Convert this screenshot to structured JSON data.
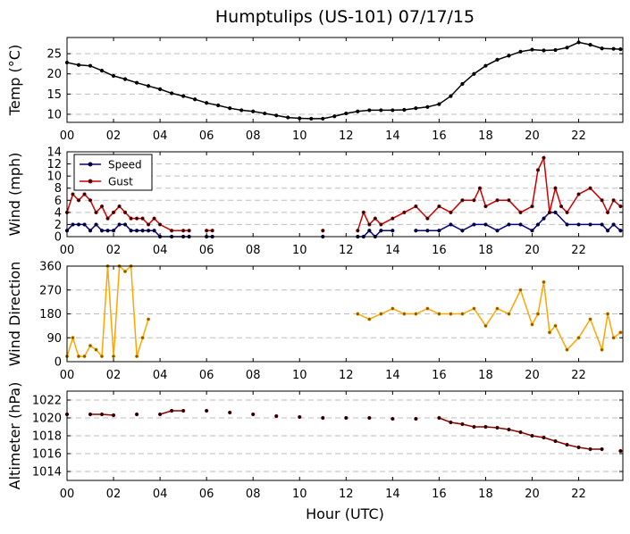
{
  "figure": {
    "title": "Humptulips (US-101) 07/17/15",
    "xlabel": "Hour (UTC)"
  },
  "chart_data": [
    {
      "type": "line",
      "ylabel": "Temp ($^\\circ$C)",
      "xlim": [
        0,
        23.9
      ],
      "ylim": [
        8,
        29
      ],
      "xticks": [
        0,
        2,
        4,
        6,
        8,
        10,
        12,
        14,
        16,
        18,
        20,
        22
      ],
      "xtick_labels": [
        "00",
        "02",
        "04",
        "06",
        "08",
        "10",
        "12",
        "14",
        "16",
        "18",
        "20",
        "22"
      ],
      "yticks": [
        10,
        15,
        20,
        25
      ],
      "ytick_labels": [
        "10",
        "15",
        "20",
        "25"
      ],
      "grid": "y",
      "series": [
        {
          "color": "#000000",
          "x": [
            0,
            0.5,
            1,
            1.5,
            2,
            2.5,
            3,
            3.5,
            4,
            4.5,
            5,
            5.5,
            6,
            6.5,
            7,
            7.5,
            8,
            8.5,
            9,
            9.5,
            10,
            10.5,
            11,
            11.5,
            12,
            12.5,
            13,
            13.5,
            14,
            14.5,
            15,
            15.5,
            16,
            16.5,
            17,
            17.5,
            18,
            18.5,
            19,
            19.5,
            20,
            20.5,
            21,
            21.5,
            22,
            22.5,
            23,
            23.5,
            23.8
          ],
          "y": [
            22.8,
            22.2,
            22.0,
            20.8,
            19.5,
            18.7,
            17.8,
            17.0,
            16.2,
            15.2,
            14.5,
            13.7,
            12.8,
            12.2,
            11.5,
            11.0,
            10.7,
            10.2,
            9.7,
            9.2,
            9.0,
            8.9,
            8.9,
            9.5,
            10.2,
            10.7,
            11.0,
            11.0,
            11.0,
            11.1,
            11.5,
            11.8,
            12.5,
            14.5,
            17.5,
            20.0,
            22.0,
            23.5,
            24.5,
            25.5,
            26.0,
            25.8,
            25.9,
            26.5,
            27.8,
            27.2,
            26.3,
            26.2,
            26.1
          ]
        }
      ]
    },
    {
      "type": "line",
      "ylabel": "Wind (mph)",
      "xlim": [
        0,
        23.9
      ],
      "ylim": [
        0,
        14
      ],
      "xticks": [
        0,
        2,
        4,
        6,
        8,
        10,
        12,
        14,
        16,
        18,
        20,
        22
      ],
      "xtick_labels": [
        "00",
        "02",
        "04",
        "06",
        "08",
        "10",
        "12",
        "14",
        "16",
        "18",
        "20",
        "22"
      ],
      "yticks": [
        0,
        2,
        4,
        6,
        8,
        10,
        12,
        14
      ],
      "ytick_labels": [
        "0",
        "2",
        "4",
        "6",
        "8",
        "10",
        "12",
        "14"
      ],
      "grid": "y",
      "legend": {
        "position": "top-left",
        "entries": [
          "Speed",
          "Gust"
        ]
      },
      "series": [
        {
          "name": "Speed",
          "color": "#00008b",
          "x": [
            0,
            0.25,
            0.5,
            0.75,
            1,
            1.25,
            1.5,
            1.75,
            2,
            2.25,
            2.5,
            2.75,
            3,
            3.25,
            3.5,
            3.75,
            4,
            4.5,
            5,
            5.25,
            6,
            6.25,
            11,
            12.5,
            12.75,
            13,
            13.25,
            13.5,
            14,
            15,
            15.5,
            16,
            16.5,
            17,
            17.5,
            18,
            18.5,
            19,
            19.5,
            20,
            20.25,
            20.5,
            20.75,
            21,
            21.5,
            22,
            22.5,
            23,
            23.25,
            23.5,
            23.8
          ],
          "y": [
            1,
            2,
            2,
            2,
            1,
            2,
            1,
            1,
            1,
            2,
            2,
            1,
            1,
            1,
            1,
            1,
            0,
            0,
            0,
            0,
            0,
            0,
            0,
            0,
            0,
            1,
            0,
            1,
            1,
            1,
            1,
            1,
            2,
            1,
            2,
            2,
            1,
            2,
            2,
            1,
            2,
            3,
            4,
            4,
            2,
            2,
            2,
            2,
            1,
            2,
            1
          ]
        },
        {
          "name": "Gust",
          "color": "#cc0000",
          "x": [
            0,
            0.25,
            0.5,
            0.75,
            1,
            1.25,
            1.5,
            1.75,
            2,
            2.25,
            2.5,
            2.75,
            3,
            3.25,
            3.5,
            3.75,
            4,
            4.5,
            5,
            5.25,
            6,
            6.25,
            11,
            12.5,
            12.75,
            13,
            13.25,
            13.5,
            14,
            14.5,
            15,
            15.5,
            16,
            16.5,
            17,
            17.5,
            17.75,
            18,
            18.5,
            19,
            19.5,
            20,
            20.25,
            20.5,
            20.75,
            21,
            21.25,
            21.5,
            22,
            22.5,
            23,
            23.25,
            23.5,
            23.8
          ],
          "y": [
            4,
            7,
            6,
            7,
            6,
            4,
            5,
            3,
            4,
            5,
            4,
            3,
            3,
            3,
            2,
            3,
            2,
            1,
            1,
            1,
            1,
            1,
            1,
            1,
            4,
            2,
            3,
            2,
            3,
            4,
            5,
            3,
            5,
            4,
            6,
            6,
            8,
            5,
            6,
            6,
            4,
            5,
            11,
            13,
            4,
            8,
            5,
            4,
            7,
            8,
            6,
            4,
            6,
            5
          ]
        }
      ]
    },
    {
      "type": "line",
      "ylabel": "Wind Direction",
      "xlim": [
        0,
        23.9
      ],
      "ylim": [
        0,
        360
      ],
      "xticks": [
        0,
        2,
        4,
        6,
        8,
        10,
        12,
        14,
        16,
        18,
        20,
        22
      ],
      "xtick_labels": [
        "00",
        "02",
        "04",
        "06",
        "08",
        "10",
        "12",
        "14",
        "16",
        "18",
        "20",
        "22"
      ],
      "yticks": [
        0,
        90,
        180,
        270,
        360
      ],
      "ytick_labels": [
        "0",
        "90",
        "180",
        "270",
        "360"
      ],
      "grid": "y",
      "series": [
        {
          "color": "#ffa500",
          "x": [
            0,
            0.25,
            0.5,
            0.75,
            1,
            1.25,
            1.5,
            1.75,
            2,
            2.25,
            2.5,
            2.75,
            3,
            3.25,
            3.5,
            12.5,
            13,
            13.5,
            14,
            14.5,
            15,
            15.5,
            16,
            16.5,
            17,
            17.5,
            18,
            18.5,
            19,
            19.5,
            20,
            20.25,
            20.5,
            20.75,
            21,
            21.5,
            22,
            22.5,
            23,
            23.25,
            23.5,
            23.8
          ],
          "y": [
            20,
            90,
            20,
            20,
            60,
            45,
            20,
            360,
            20,
            360,
            340,
            360,
            20,
            90,
            160,
            180,
            160,
            180,
            200,
            180,
            180,
            200,
            180,
            180,
            180,
            200,
            135,
            200,
            180,
            270,
            140,
            180,
            300,
            110,
            135,
            45,
            90,
            160,
            45,
            180,
            90,
            110
          ]
        }
      ]
    },
    {
      "type": "line",
      "ylabel": "Altimeter (hPa)",
      "xlim": [
        0,
        23.9
      ],
      "ylim": [
        1013,
        1023
      ],
      "xticks": [
        0,
        2,
        4,
        6,
        8,
        10,
        12,
        14,
        16,
        18,
        20,
        22
      ],
      "xtick_labels": [
        "00",
        "02",
        "04",
        "06",
        "08",
        "10",
        "12",
        "14",
        "16",
        "18",
        "20",
        "22"
      ],
      "yticks": [
        1014,
        1016,
        1018,
        1020,
        1022
      ],
      "ytick_labels": [
        "1014",
        "1016",
        "1018",
        "1020",
        "1022"
      ],
      "grid": "y",
      "series": [
        {
          "color": "#8b0000",
          "x": [
            0,
            1,
            1.5,
            2,
            3,
            4,
            4.5,
            5,
            6,
            7,
            8,
            9,
            10,
            11,
            12,
            13,
            14,
            15,
            16,
            16.5,
            17,
            17.5,
            18,
            18.5,
            19,
            19.5,
            20,
            20.5,
            21,
            21.5,
            22,
            22.5,
            23,
            23.8
          ],
          "y": [
            1020.4,
            1020.4,
            1020.4,
            1020.3,
            1020.4,
            1020.4,
            1020.8,
            1020.8,
            1020.8,
            1020.6,
            1020.4,
            1020.2,
            1020.1,
            1020.0,
            1020.0,
            1020.0,
            1019.9,
            1019.9,
            1020.0,
            1019.5,
            1019.3,
            1019.0,
            1019.0,
            1018.9,
            1018.7,
            1018.4,
            1018.0,
            1017.8,
            1017.4,
            1017.0,
            1016.7,
            1016.5,
            1016.5,
            1016.3
          ]
        }
      ]
    }
  ]
}
